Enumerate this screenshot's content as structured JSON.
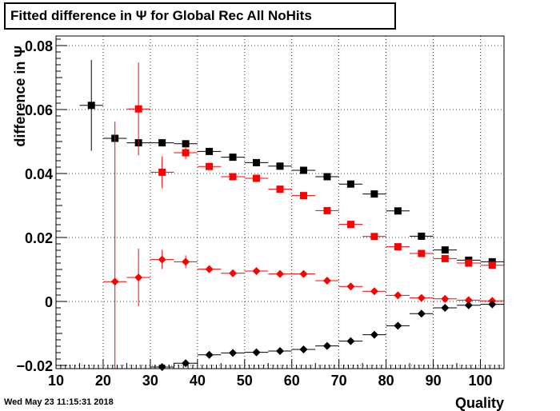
{
  "title": "Fitted difference in  Ψ  for Global Rec All NoHits",
  "timestamp": "Wed May 23 11:15:31 2018",
  "chart_data": {
    "type": "scatter",
    "title": "Fitted difference in  Ψ  for Global Rec All NoHits",
    "xlabel": "Quality",
    "ylabel": "difference in Ψ",
    "xlim": [
      10,
      105
    ],
    "ylim": [
      -0.021,
      0.083
    ],
    "xticks": [
      10,
      20,
      30,
      40,
      50,
      60,
      70,
      80,
      90,
      100
    ],
    "yticks": [
      -0.02,
      0,
      0.02,
      0.04,
      0.06,
      0.08
    ],
    "ytick_labels": [
      "−0.02",
      "0",
      "0.02",
      "0.04",
      "0.06",
      "0.08"
    ],
    "grid": true,
    "x_halfwidth": 2.5,
    "series": [
      {
        "color": "#000000",
        "marker": "square",
        "points": [
          {
            "x": 17.5,
            "y": 0.0613,
            "err": 0.0142
          },
          {
            "x": 22.5,
            "y": 0.051,
            "err": 0
          },
          {
            "x": 27.5,
            "y": 0.0496,
            "err": 0
          },
          {
            "x": 32.5,
            "y": 0.0496,
            "err": 0
          },
          {
            "x": 37.5,
            "y": 0.0493,
            "err": 0
          },
          {
            "x": 42.5,
            "y": 0.0469,
            "err": 0
          },
          {
            "x": 47.5,
            "y": 0.0451,
            "err": 0
          },
          {
            "x": 52.5,
            "y": 0.0434,
            "err": 0
          },
          {
            "x": 57.5,
            "y": 0.0423,
            "err": 0
          },
          {
            "x": 62.5,
            "y": 0.041,
            "err": 0
          },
          {
            "x": 67.5,
            "y": 0.039,
            "err": 0
          },
          {
            "x": 72.5,
            "y": 0.0367,
            "err": 0
          },
          {
            "x": 77.5,
            "y": 0.0336,
            "err": 0
          },
          {
            "x": 82.5,
            "y": 0.0283,
            "err": 0
          },
          {
            "x": 87.5,
            "y": 0.0204,
            "err": 0
          },
          {
            "x": 92.5,
            "y": 0.0161,
            "err": 0
          },
          {
            "x": 97.5,
            "y": 0.0129,
            "err": 0
          },
          {
            "x": 102.5,
            "y": 0.0124,
            "err": 0
          }
        ]
      },
      {
        "color": "#ff0000",
        "marker": "square",
        "points": [
          {
            "x": 27.5,
            "y": 0.0602,
            "err": 0.0145
          },
          {
            "x": 32.5,
            "y": 0.0404,
            "err": 0.005
          },
          {
            "x": 37.5,
            "y": 0.0465,
            "err": 0.002
          },
          {
            "x": 42.5,
            "y": 0.0422,
            "err": 0
          },
          {
            "x": 47.5,
            "y": 0.039,
            "err": 0
          },
          {
            "x": 52.5,
            "y": 0.0385,
            "err": 0
          },
          {
            "x": 57.5,
            "y": 0.0351,
            "err": 0
          },
          {
            "x": 62.5,
            "y": 0.0331,
            "err": 0
          },
          {
            "x": 67.5,
            "y": 0.0284,
            "err": 0
          },
          {
            "x": 72.5,
            "y": 0.0241,
            "err": 0
          },
          {
            "x": 77.5,
            "y": 0.0203,
            "err": 0
          },
          {
            "x": 82.5,
            "y": 0.0171,
            "err": 0
          },
          {
            "x": 87.5,
            "y": 0.015,
            "err": 0
          },
          {
            "x": 92.5,
            "y": 0.0134,
            "err": 0
          },
          {
            "x": 97.5,
            "y": 0.012,
            "err": 0
          },
          {
            "x": 102.5,
            "y": 0.0113,
            "err": 0
          }
        ]
      },
      {
        "color": "#ff0000",
        "marker": "diamond",
        "points": [
          {
            "x": 22.5,
            "y": 0.0062,
            "err": 0.05
          },
          {
            "x": 27.5,
            "y": 0.0075,
            "err": 0.009
          },
          {
            "x": 32.5,
            "y": 0.0131,
            "err": 0.003
          },
          {
            "x": 37.5,
            "y": 0.0124,
            "err": 0.002
          },
          {
            "x": 42.5,
            "y": 0.0101,
            "err": 0
          },
          {
            "x": 47.5,
            "y": 0.0088,
            "err": 0
          },
          {
            "x": 52.5,
            "y": 0.0095,
            "err": 0
          },
          {
            "x": 57.5,
            "y": 0.0086,
            "err": 0
          },
          {
            "x": 62.5,
            "y": 0.0086,
            "err": 0
          },
          {
            "x": 67.5,
            "y": 0.0065,
            "err": 0
          },
          {
            "x": 72.5,
            "y": 0.0047,
            "err": 0
          },
          {
            "x": 77.5,
            "y": 0.0032,
            "err": 0
          },
          {
            "x": 82.5,
            "y": 0.0019,
            "err": 0
          },
          {
            "x": 87.5,
            "y": 0.0011,
            "err": 0
          },
          {
            "x": 92.5,
            "y": 0.0008,
            "err": 0
          },
          {
            "x": 97.5,
            "y": 0.0004,
            "err": 0
          },
          {
            "x": 102.5,
            "y": 0.0002,
            "err": 0
          }
        ]
      },
      {
        "color": "#000000",
        "marker": "diamond",
        "points": [
          {
            "x": 32.5,
            "y": -0.0205,
            "err": 0
          },
          {
            "x": 37.5,
            "y": -0.0193,
            "err": 0
          },
          {
            "x": 42.5,
            "y": -0.0167,
            "err": 0
          },
          {
            "x": 47.5,
            "y": -0.0161,
            "err": 0
          },
          {
            "x": 52.5,
            "y": -0.0159,
            "err": 0
          },
          {
            "x": 57.5,
            "y": -0.0155,
            "err": 0
          },
          {
            "x": 62.5,
            "y": -0.015,
            "err": 0
          },
          {
            "x": 67.5,
            "y": -0.0139,
            "err": 0
          },
          {
            "x": 72.5,
            "y": -0.0124,
            "err": 0
          },
          {
            "x": 77.5,
            "y": -0.0104,
            "err": 0
          },
          {
            "x": 82.5,
            "y": -0.0076,
            "err": 0
          },
          {
            "x": 87.5,
            "y": -0.0038,
            "err": 0
          },
          {
            "x": 92.5,
            "y": -0.002,
            "err": 0
          },
          {
            "x": 97.5,
            "y": -0.0012,
            "err": 0
          },
          {
            "x": 102.5,
            "y": -0.0009,
            "err": 0
          }
        ]
      }
    ]
  }
}
